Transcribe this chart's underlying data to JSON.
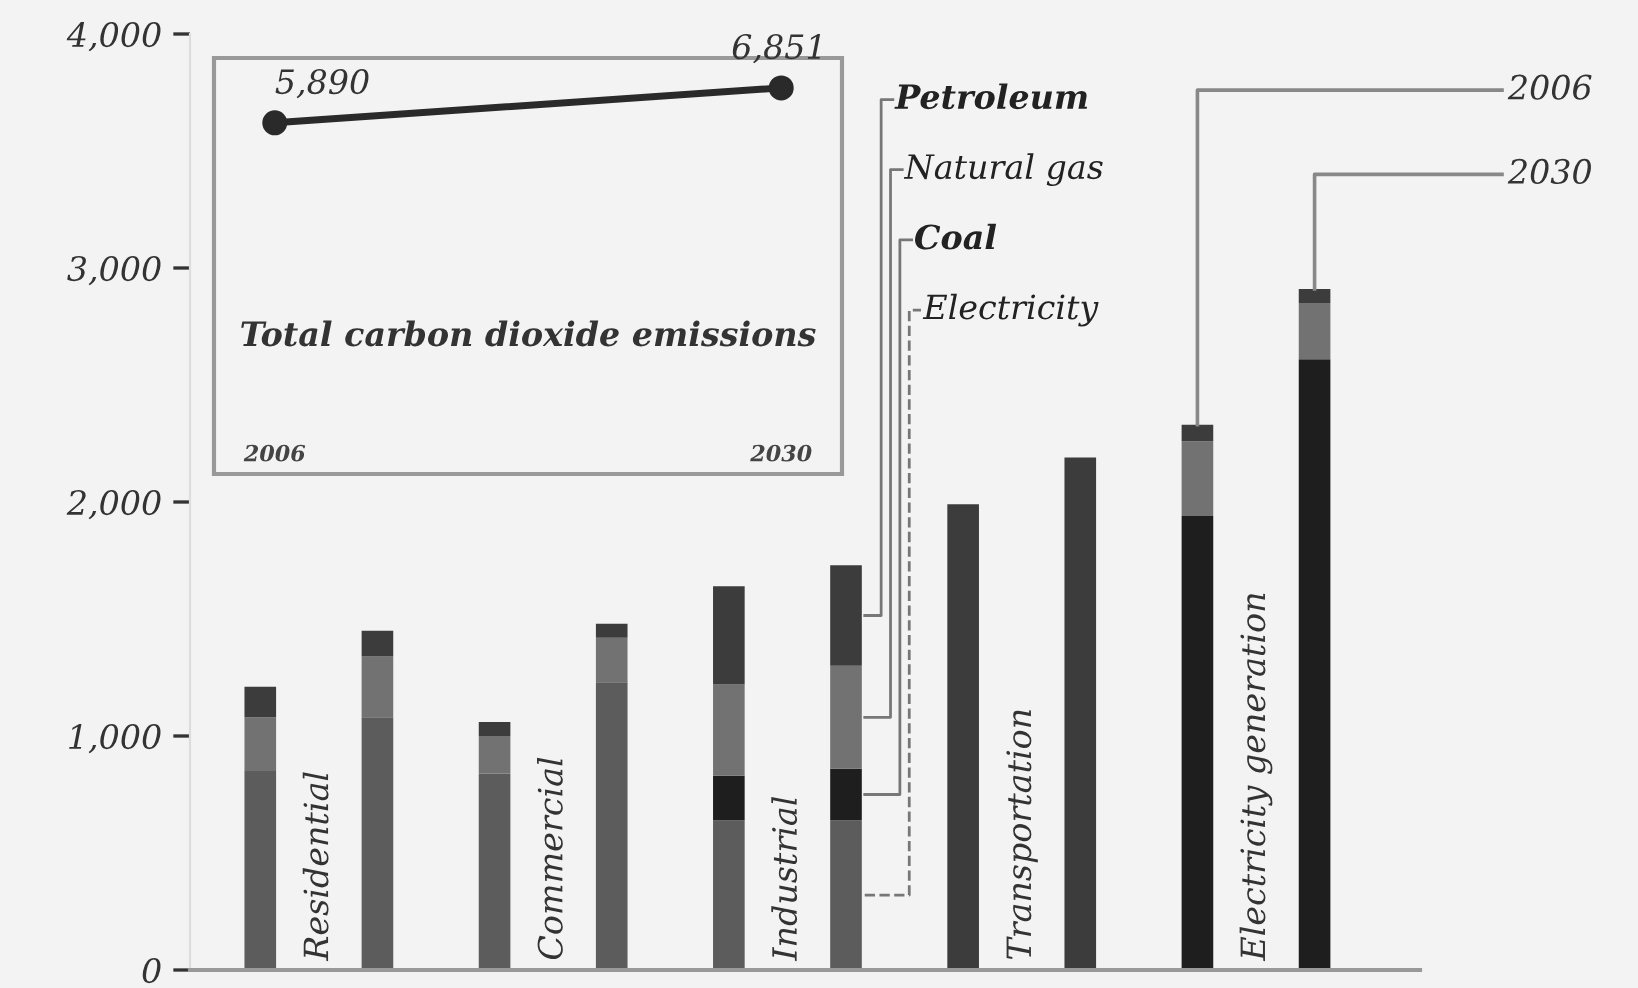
{
  "chart_data": [
    {
      "type": "bar",
      "stacked": true,
      "categories": [
        null,
        null,
        null,
        null,
        null,
        null,
        null,
        null,
        null,
        null
      ],
      "series": [
        {
          "name": "Electricity",
          "color": "#5c5c5c",
          "values": [
            850,
            1080,
            840,
            1230,
            640,
            640,
            0,
            0,
            0,
            0
          ]
        },
        {
          "name": "Coal",
          "color": "#1e1e1e",
          "values": [
            0,
            0,
            0,
            0,
            190,
            220,
            0,
            0,
            1940,
            2610
          ]
        },
        {
          "name": "Natural gas",
          "color": "#727272",
          "values": [
            230,
            260,
            160,
            190,
            390,
            440,
            0,
            0,
            320,
            240
          ]
        },
        {
          "name": "Petroleum",
          "color": "#3c3c3c",
          "values": [
            130,
            110,
            60,
            60,
            420,
            430,
            1990,
            2190,
            70,
            60
          ]
        }
      ],
      "ylim": [
        0,
        4000
      ],
      "yticks": [
        {
          "value": 0,
          "label": "0"
        },
        {
          "value": 1000,
          "label": "1,000"
        },
        {
          "value": 2000,
          "label": "2,000"
        },
        {
          "value": 3000,
          "label": "3,000"
        },
        {
          "value": 4000,
          "label": "4,000"
        }
      ],
      "annotations": [
        "Residential",
        "Commercial",
        "Industrial",
        "Transportation",
        "Electricity generation",
        "2006",
        "2030"
      ]
    },
    {
      "type": "line",
      "title": "Total carbon dioxide emissions",
      "categories": [
        "2006",
        "2030"
      ],
      "values": [
        5890,
        6851
      ],
      "value_labels": [
        "5,890",
        "6,851"
      ],
      "color": "#2a2a2a",
      "marker": "circle"
    }
  ]
}
